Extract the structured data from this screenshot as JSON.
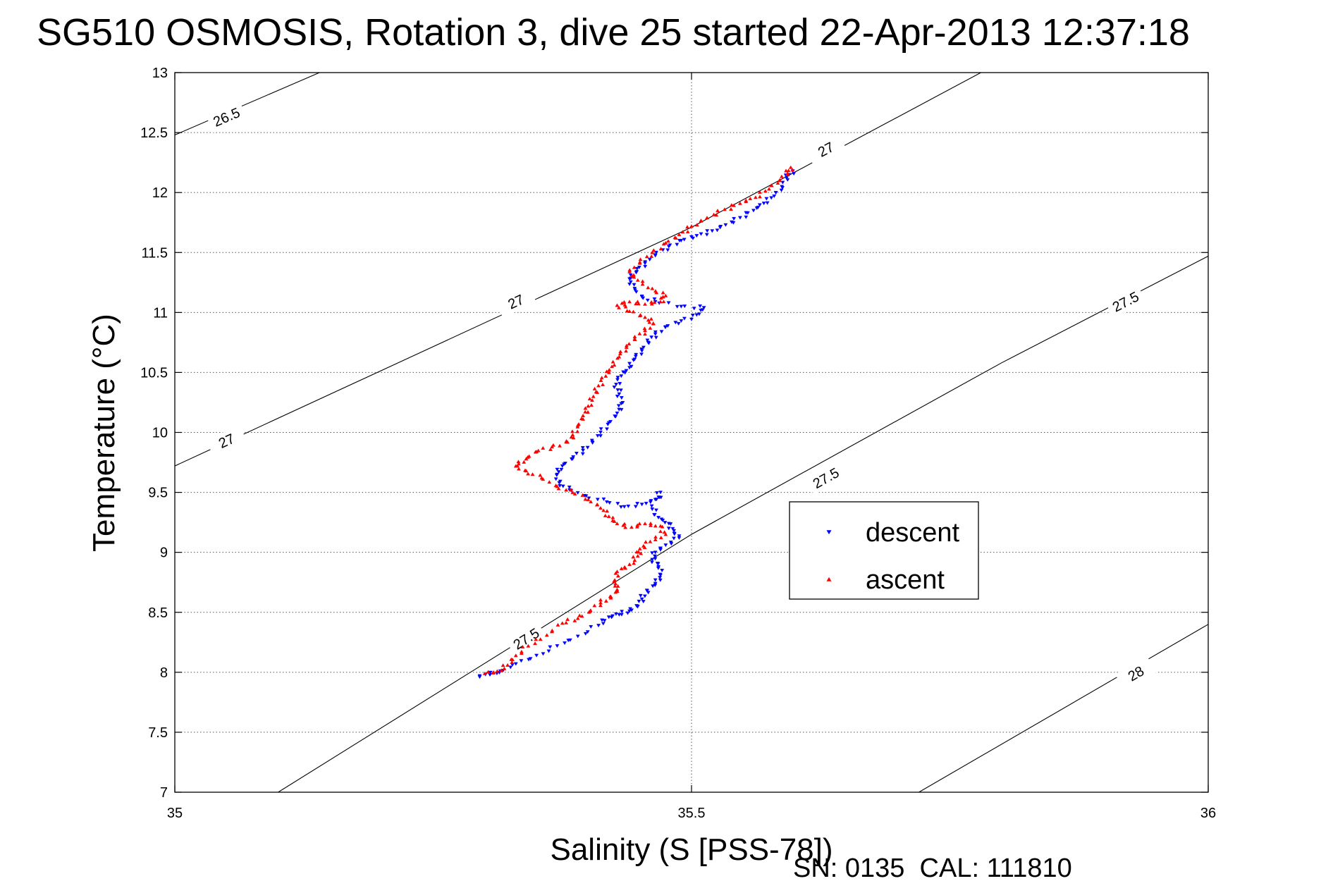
{
  "chart_data": {
    "type": "scatter",
    "title": "SG510 OSMOSIS, Rotation 3, dive 25 started 22-Apr-2013 12:37:18",
    "xlabel": "Salinity (S [PSS-78])",
    "ylabel": "Temperature (°C)",
    "footer": "SN: 0135  CAL: 111810",
    "xlim": [
      35,
      36
    ],
    "ylim": [
      7,
      13
    ],
    "xticks": [
      35,
      35.5,
      36
    ],
    "xtick_labels": [
      "35",
      "35.5",
      "36"
    ],
    "yticks": [
      7,
      7.5,
      8,
      8.5,
      9,
      9.5,
      10,
      10.5,
      11,
      11.5,
      12,
      12.5,
      13
    ],
    "ytick_labels": [
      "7",
      "7.5",
      "8",
      "8.5",
      "9",
      "9.5",
      "10",
      "10.5",
      "11",
      "11.5",
      "12",
      "12.5",
      "13"
    ],
    "grid": true,
    "legend_position": "center-right",
    "density_contours": [
      {
        "level": 26.5,
        "label": "26.5",
        "points": [
          [
            35,
            12.48
          ],
          [
            35.14,
            13.0
          ]
        ],
        "label_at": [
          [
            35.05,
            12.63
          ]
        ]
      },
      {
        "level": 27,
        "label": "27",
        "points": [
          [
            35,
            9.72
          ],
          [
            35.5,
            11.71
          ],
          [
            35.78,
            13.0
          ]
        ],
        "label_at": [
          [
            35.05,
            9.93
          ],
          [
            35.33,
            11.09
          ],
          [
            35.63,
            12.36
          ]
        ]
      },
      {
        "level": 27.5,
        "label": "27.5",
        "points": [
          [
            35.1,
            7.0
          ],
          [
            35.5,
            9.15
          ],
          [
            35.8,
            10.58
          ],
          [
            36,
            11.47
          ]
        ],
        "label_at": [
          [
            35.34,
            8.28
          ],
          [
            35.63,
            9.62
          ],
          [
            35.92,
            11.09
          ]
        ]
      },
      {
        "level": 28,
        "label": "28",
        "points": [
          [
            35.72,
            7.0
          ],
          [
            36,
            8.4
          ]
        ],
        "label_at": [
          [
            35.93,
            7.99
          ]
        ]
      }
    ],
    "series": [
      {
        "name": "descent",
        "color": "#0000ff",
        "marker": "triangle-down",
        "points": [
          [
            35.598,
            12.18
          ],
          [
            35.592,
            12.12
          ],
          [
            35.588,
            12.04
          ],
          [
            35.58,
            11.97
          ],
          [
            35.57,
            11.91
          ],
          [
            35.56,
            11.85
          ],
          [
            35.547,
            11.79
          ],
          [
            35.533,
            11.73
          ],
          [
            35.52,
            11.68
          ],
          [
            35.505,
            11.64
          ],
          [
            35.49,
            11.6
          ],
          [
            35.478,
            11.55
          ],
          [
            35.465,
            11.48
          ],
          [
            35.455,
            11.41
          ],
          [
            35.447,
            11.34
          ],
          [
            35.44,
            11.28
          ],
          [
            35.445,
            11.2
          ],
          [
            35.452,
            11.13
          ],
          [
            35.465,
            11.09
          ],
          [
            35.49,
            11.05
          ],
          [
            35.512,
            11.04
          ],
          [
            35.505,
            10.98
          ],
          [
            35.49,
            10.93
          ],
          [
            35.475,
            10.88
          ],
          [
            35.465,
            10.82
          ],
          [
            35.458,
            10.75
          ],
          [
            35.452,
            10.68
          ],
          [
            35.445,
            10.61
          ],
          [
            35.44,
            10.54
          ],
          [
            35.432,
            10.47
          ],
          [
            35.427,
            10.4
          ],
          [
            35.43,
            10.32
          ],
          [
            35.432,
            10.24
          ],
          [
            35.428,
            10.16
          ],
          [
            35.42,
            10.08
          ],
          [
            35.412,
            10.0
          ],
          [
            35.404,
            9.92
          ],
          [
            35.395,
            9.85
          ],
          [
            35.385,
            9.78
          ],
          [
            35.375,
            9.72
          ],
          [
            35.37,
            9.65
          ],
          [
            35.372,
            9.58
          ],
          [
            35.382,
            9.52
          ],
          [
            35.398,
            9.47
          ],
          [
            35.418,
            9.42
          ],
          [
            35.435,
            9.38
          ],
          [
            35.452,
            9.4
          ],
          [
            35.465,
            9.44
          ],
          [
            35.47,
            9.5
          ],
          [
            35.462,
            9.36
          ],
          [
            35.468,
            9.29
          ],
          [
            35.478,
            9.24
          ],
          [
            35.483,
            9.18
          ],
          [
            35.488,
            9.12
          ],
          [
            35.475,
            9.06
          ],
          [
            35.465,
            9.0
          ],
          [
            35.462,
            8.94
          ],
          [
            35.468,
            8.88
          ],
          [
            35.47,
            8.81
          ],
          [
            35.465,
            8.74
          ],
          [
            35.457,
            8.68
          ],
          [
            35.452,
            8.61
          ],
          [
            35.448,
            8.55
          ],
          [
            35.44,
            8.51
          ],
          [
            35.43,
            8.48
          ],
          [
            35.42,
            8.46
          ],
          [
            35.41,
            8.39
          ],
          [
            35.39,
            8.3
          ],
          [
            35.37,
            8.22
          ],
          [
            35.35,
            8.14
          ],
          [
            35.33,
            8.07
          ],
          [
            35.315,
            8.01
          ],
          [
            35.305,
            7.98
          ],
          [
            35.295,
            7.97
          ]
        ]
      },
      {
        "name": "ascent",
        "color": "#ff0000",
        "marker": "triangle-up",
        "points": [
          [
            35.596,
            12.21
          ],
          [
            35.593,
            12.16
          ],
          [
            35.585,
            12.1
          ],
          [
            35.575,
            12.03
          ],
          [
            35.562,
            11.96
          ],
          [
            35.547,
            11.91
          ],
          [
            35.532,
            11.86
          ],
          [
            35.515,
            11.79
          ],
          [
            35.5,
            11.72
          ],
          [
            35.488,
            11.65
          ],
          [
            35.475,
            11.58
          ],
          [
            35.462,
            11.5
          ],
          [
            35.45,
            11.42
          ],
          [
            35.44,
            11.34
          ],
          [
            35.448,
            11.27
          ],
          [
            35.462,
            11.2
          ],
          [
            35.475,
            11.14
          ],
          [
            35.47,
            11.09
          ],
          [
            35.455,
            11.07
          ],
          [
            35.44,
            11.09
          ],
          [
            35.428,
            11.06
          ],
          [
            35.44,
            11.01
          ],
          [
            35.455,
            10.96
          ],
          [
            35.463,
            10.91
          ],
          [
            35.455,
            10.85
          ],
          [
            35.445,
            10.78
          ],
          [
            35.437,
            10.71
          ],
          [
            35.43,
            10.63
          ],
          [
            35.423,
            10.55
          ],
          [
            35.417,
            10.47
          ],
          [
            35.41,
            10.39
          ],
          [
            35.405,
            10.3
          ],
          [
            35.4,
            10.22
          ],
          [
            35.395,
            10.14
          ],
          [
            35.39,
            10.06
          ],
          [
            35.385,
            9.98
          ],
          [
            35.38,
            9.92
          ],
          [
            35.365,
            9.88
          ],
          [
            35.35,
            9.84
          ],
          [
            35.34,
            9.78
          ],
          [
            35.33,
            9.72
          ],
          [
            35.34,
            9.68
          ],
          [
            35.355,
            9.62
          ],
          [
            35.37,
            9.55
          ],
          [
            35.385,
            9.5
          ],
          [
            35.4,
            9.44
          ],
          [
            35.412,
            9.37
          ],
          [
            35.42,
            9.3
          ],
          [
            35.428,
            9.24
          ],
          [
            35.442,
            9.21
          ],
          [
            35.455,
            9.24
          ],
          [
            35.47,
            9.22
          ],
          [
            35.475,
            9.15
          ],
          [
            35.46,
            9.09
          ],
          [
            35.45,
            9.03
          ],
          [
            35.448,
            8.97
          ],
          [
            35.44,
            8.9
          ],
          [
            35.428,
            8.84
          ],
          [
            35.425,
            8.76
          ],
          [
            35.428,
            8.69
          ],
          [
            35.422,
            8.63
          ],
          [
            35.412,
            8.58
          ],
          [
            35.402,
            8.51
          ],
          [
            35.39,
            8.45
          ],
          [
            35.375,
            8.41
          ],
          [
            35.36,
            8.31
          ],
          [
            35.342,
            8.22
          ],
          [
            35.33,
            8.14
          ],
          [
            35.322,
            8.06
          ],
          [
            35.312,
            8.01
          ],
          [
            35.3,
            7.99
          ]
        ]
      }
    ]
  }
}
